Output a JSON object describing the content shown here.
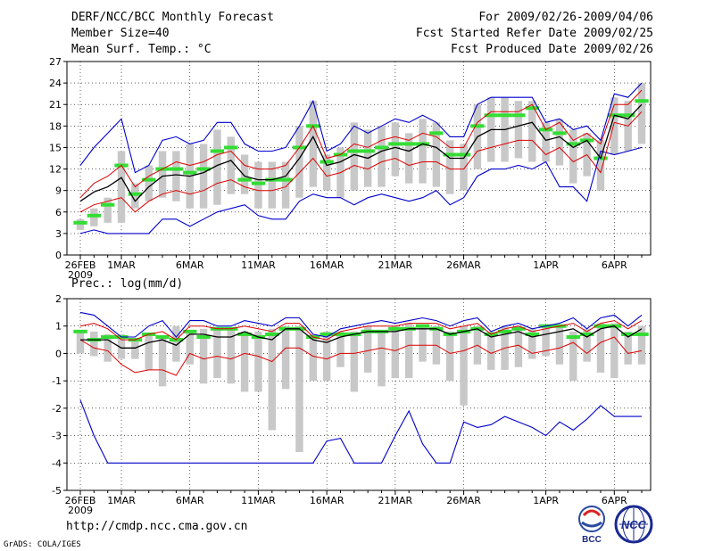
{
  "header": {
    "title": "DERF/NCC/BCC Monthly Forecast",
    "member_size": "Member Size=40",
    "variable": "Mean Surf. Temp.: °C",
    "period": "For 2009/02/26-2009/04/06",
    "started": "Fcst Started Refer Date 2009/02/25",
    "produced": "Fcst Produced Date 2009/02/26"
  },
  "footer": {
    "url": "http://cmdp.ncc.cma.gov.cn",
    "credit": "GrADS: COLA/IGES",
    "logo_left_text": "BCC",
    "logo_right_text": "NCC"
  },
  "colors": {
    "max_line": "#0000cc",
    "spread_line": "#dd0000",
    "mean_line": "#000000",
    "box": "#c8c8c8",
    "median": "#33dd33"
  },
  "chart_data": [
    {
      "type": "line",
      "title": "Mean Surf. Temp.: °C",
      "xlabel": "",
      "ylabel": "°C",
      "ylim": [
        0,
        27
      ],
      "yticks": [
        0,
        3,
        6,
        9,
        12,
        15,
        18,
        21,
        24,
        27
      ],
      "x_tick_labels": [
        {
          "day": 0,
          "label": "26FEB",
          "sub": "2009"
        },
        {
          "day": 3,
          "label": "1MAR",
          "sub": ""
        },
        {
          "day": 8,
          "label": "6MAR",
          "sub": ""
        },
        {
          "day": 13,
          "label": "11MAR",
          "sub": ""
        },
        {
          "day": 18,
          "label": "16MAR",
          "sub": ""
        },
        {
          "day": 23,
          "label": "21MAR",
          "sub": ""
        },
        {
          "day": 28,
          "label": "26MAR",
          "sub": ""
        },
        {
          "day": 34,
          "label": "1APR",
          "sub": ""
        },
        {
          "day": 39,
          "label": "6APR",
          "sub": ""
        }
      ],
      "series": [
        {
          "name": "max",
          "values": [
            12.5,
            15,
            17,
            19,
            11.5,
            12.5,
            16,
            16.5,
            15.5,
            16,
            18.5,
            18.5,
            15.5,
            14.5,
            14.5,
            15,
            18,
            21.5,
            14.5,
            15.5,
            18,
            17,
            18,
            19,
            18.5,
            19.5,
            18.5,
            16.5,
            16.5,
            21,
            22,
            22,
            22,
            22,
            18.5,
            19,
            17.5,
            18,
            16,
            22.5,
            22,
            24
          ]
        },
        {
          "name": "upper",
          "values": [
            8,
            10,
            11,
            12.5,
            9.5,
            11,
            12,
            13,
            12.5,
            13,
            14,
            14.5,
            12.5,
            12,
            12,
            12.5,
            15,
            18,
            13.5,
            14,
            15.5,
            15,
            16,
            16.5,
            16,
            17,
            16.5,
            15,
            15,
            18.5,
            20,
            20,
            20,
            21,
            17.5,
            18.5,
            16,
            17,
            15.5,
            21,
            21,
            23
          ]
        },
        {
          "name": "mean",
          "values": [
            7.5,
            8.8,
            9.5,
            10.8,
            7.5,
            9.5,
            11,
            11.2,
            11,
            11.5,
            12.5,
            13.2,
            11,
            10.5,
            10.5,
            11,
            13.5,
            16.5,
            12.5,
            13,
            14,
            13.5,
            14.5,
            15,
            14.5,
            15.5,
            15,
            13.5,
            13.5,
            16.5,
            17.5,
            17.5,
            18,
            18.5,
            16,
            16.5,
            15,
            16,
            13.5,
            19.5,
            19,
            21
          ]
        },
        {
          "name": "lower",
          "values": [
            6,
            7,
            7.5,
            8,
            6,
            7.5,
            8.5,
            9,
            8.5,
            9,
            10,
            10.5,
            9.5,
            9,
            9,
            9.5,
            11.5,
            13.5,
            11,
            11.5,
            12.5,
            12,
            13,
            13.5,
            12.5,
            13,
            13,
            12,
            12,
            14.5,
            15,
            15.5,
            16,
            16,
            14,
            15,
            13,
            14,
            11.5,
            18.5,
            18,
            20
          ]
        },
        {
          "name": "min",
          "values": [
            3,
            3.5,
            3,
            3,
            3,
            3,
            5,
            5,
            4,
            5,
            6,
            6.5,
            7,
            5.5,
            5,
            5,
            7.5,
            8.5,
            8,
            8,
            7,
            8,
            8.5,
            8,
            7.5,
            8,
            9,
            7,
            8,
            11,
            12,
            12,
            12.5,
            12,
            13,
            9.5,
            9.5,
            7.5,
            14.5,
            14,
            14.5,
            15
          ]
        },
        {
          "name": "box_low",
          "values": [
            3.5,
            4,
            4.5,
            4.5,
            6.5,
            7.5,
            8,
            7.5,
            6.5,
            6.5,
            7,
            8.5,
            8.5,
            6.5,
            6.5,
            6.5,
            8,
            9.5,
            9,
            8,
            9,
            9.5,
            9.5,
            11,
            10,
            10,
            9.5,
            8.5,
            9,
            12,
            13,
            13,
            13.5,
            13,
            13,
            12.5,
            10,
            11,
            9,
            14,
            14.5,
            15.5
          ]
        },
        {
          "name": "box_high",
          "values": [
            5,
            6.5,
            8,
            14.5,
            10,
            12.5,
            14.5,
            14.5,
            15.5,
            15.5,
            17.5,
            16.5,
            14,
            13,
            13,
            13,
            18,
            21.5,
            14,
            15,
            18.5,
            17.5,
            18,
            18.5,
            17,
            19,
            18.5,
            16,
            15.5,
            21,
            22,
            22,
            21.5,
            21.5,
            18.5,
            19,
            17.5,
            17,
            16,
            22,
            21.5,
            24
          ]
        },
        {
          "name": "median",
          "values": [
            4.5,
            5.5,
            7,
            12.5,
            8.5,
            10.5,
            12,
            12,
            11.5,
            12,
            14.5,
            15,
            10.5,
            10,
            10.5,
            10.5,
            15,
            18,
            13,
            14,
            14.5,
            14.5,
            15,
            15.5,
            15.5,
            15.5,
            17,
            14,
            14,
            18,
            19.5,
            19.5,
            19.5,
            20.5,
            17.5,
            17,
            15.5,
            16,
            13.5,
            19.5,
            19.5,
            21.5
          ]
        }
      ]
    },
    {
      "type": "line",
      "title": "Prec.: log(mm/d)",
      "xlabel": "",
      "ylabel": "log(mm/d)",
      "ylim": [
        -5,
        2
      ],
      "yticks": [
        -5,
        -4,
        -3,
        -2,
        -1,
        0,
        1,
        2
      ],
      "x_tick_labels": [
        {
          "day": 0,
          "label": "26FEB",
          "sub": "2009"
        },
        {
          "day": 3,
          "label": "1MAR",
          "sub": ""
        },
        {
          "day": 8,
          "label": "6MAR",
          "sub": ""
        },
        {
          "day": 13,
          "label": "11MAR",
          "sub": ""
        },
        {
          "day": 18,
          "label": "16MAR",
          "sub": ""
        },
        {
          "day": 23,
          "label": "21MAR",
          "sub": ""
        },
        {
          "day": 28,
          "label": "26MAR",
          "sub": ""
        },
        {
          "day": 34,
          "label": "1APR",
          "sub": ""
        },
        {
          "day": 39,
          "label": "6APR",
          "sub": ""
        }
      ],
      "series": [
        {
          "name": "max",
          "values": [
            1.5,
            1.4,
            1,
            0.6,
            0.6,
            1,
            1.2,
            0.6,
            1.2,
            1.2,
            1,
            1,
            1.2,
            1.1,
            1,
            1.3,
            1.3,
            0.7,
            0.6,
            0.9,
            1,
            1.1,
            1.2,
            1.1,
            1.2,
            1.3,
            1.2,
            1,
            1.2,
            1.3,
            0.8,
            1,
            1.1,
            0.9,
            1,
            1.1,
            1.3,
            0.9,
            1.3,
            1.4,
            1,
            1.4
          ]
        },
        {
          "name": "upper",
          "values": [
            1,
            1.1,
            0.9,
            0.5,
            0.5,
            0.7,
            0.8,
            0.5,
            1,
            1,
            0.9,
            0.9,
            1,
            0.9,
            0.8,
            1.1,
            1.1,
            0.6,
            0.5,
            0.8,
            0.9,
            1,
            1,
            1,
            1.1,
            1.1,
            1.1,
            0.9,
            1,
            1.1,
            0.7,
            0.9,
            1,
            0.8,
            0.9,
            1,
            1.1,
            0.8,
            1.1,
            1.2,
            0.9,
            1.2
          ]
        },
        {
          "name": "mean",
          "values": [
            0.5,
            0.5,
            0.5,
            0.2,
            0.2,
            0.4,
            0.5,
            0.3,
            0.7,
            0.7,
            0.6,
            0.6,
            0.8,
            0.6,
            0.5,
            0.9,
            0.9,
            0.5,
            0.4,
            0.6,
            0.7,
            0.8,
            0.8,
            0.8,
            0.9,
            0.9,
            0.9,
            0.7,
            0.8,
            0.9,
            0.6,
            0.7,
            0.8,
            0.6,
            0.7,
            0.8,
            0.9,
            0.6,
            0.9,
            1,
            0.6,
            0.9
          ]
        },
        {
          "name": "lower",
          "values": [
            0.5,
            0.2,
            0.1,
            -0.4,
            -0.7,
            -0.6,
            -0.6,
            -0.8,
            0,
            -0.2,
            -0.1,
            -0.2,
            0,
            -0.1,
            -0.3,
            0.2,
            0.2,
            -0.1,
            -0.2,
            0,
            0,
            0.1,
            0.2,
            0.1,
            0.3,
            0.3,
            0.3,
            0,
            0.1,
            0.3,
            0,
            0.2,
            0.3,
            0,
            0.1,
            0.2,
            0.4,
            0,
            0.4,
            0.6,
            0,
            0.1
          ]
        },
        {
          "name": "min",
          "values": [
            -1.7,
            -3,
            -4,
            -4,
            -4,
            -4,
            -4,
            -4,
            -4,
            -4,
            -4,
            -4,
            -4,
            -4,
            -4,
            -4,
            -4,
            -4,
            -3.2,
            -3.1,
            -4,
            -4,
            -4,
            -3,
            -2.1,
            -3.3,
            -4,
            -4,
            -2.5,
            -2.7,
            -2.6,
            -2.3,
            -2.5,
            -2.7,
            -3,
            -2.5,
            -2.8,
            -2.4,
            -1.9,
            -2.3,
            -2.3,
            -2.3
          ]
        },
        {
          "name": "box_low",
          "values": [
            0,
            -0.1,
            -0.3,
            -0.2,
            -0.2,
            -0.6,
            -1.2,
            -0.3,
            -0.4,
            -1.1,
            -0.9,
            -1.1,
            -1.4,
            -1.4,
            -2.8,
            -1.3,
            -3.6,
            -1,
            -1,
            -0.5,
            -1.4,
            -0.7,
            -1.2,
            -0.9,
            -0.9,
            -0.3,
            -0.4,
            -1,
            -1.9,
            -0.4,
            -0.6,
            -0.6,
            -0.5,
            -0.2,
            -0.1,
            -0.4,
            -1,
            -0.3,
            -0.7,
            -0.9,
            -0.4,
            -0.4
          ]
        },
        {
          "name": "box_high",
          "values": [
            0.8,
            0.8,
            0.7,
            0.7,
            0.5,
            0.7,
            0.6,
            1,
            0.8,
            0.9,
            0.9,
            0.9,
            0.8,
            0.8,
            0.9,
            1,
            1,
            0.7,
            0.8,
            0.8,
            0.8,
            1,
            0.8,
            1,
            1.1,
            1,
            1,
            0.8,
            1,
            1,
            0.8,
            1,
            1,
            0.9,
            1,
            1,
            0.8,
            0.9,
            1.1,
            1.1,
            0.8,
            1
          ]
        },
        {
          "name": "median",
          "values": [
            0.8,
            0.5,
            0.6,
            0.6,
            0.5,
            0.7,
            0.6,
            0.5,
            0.8,
            0.6,
            0.9,
            0.9,
            0.7,
            0.6,
            0.7,
            0.9,
            0.9,
            0.6,
            0.7,
            0.7,
            0.7,
            0.8,
            0.8,
            0.9,
            0.9,
            1,
            0.9,
            0.7,
            0.8,
            0.9,
            0.7,
            0.8,
            0.9,
            0.7,
            1,
            1,
            0.6,
            0.7,
            1,
            1,
            0.7,
            0.7
          ]
        }
      ]
    }
  ]
}
